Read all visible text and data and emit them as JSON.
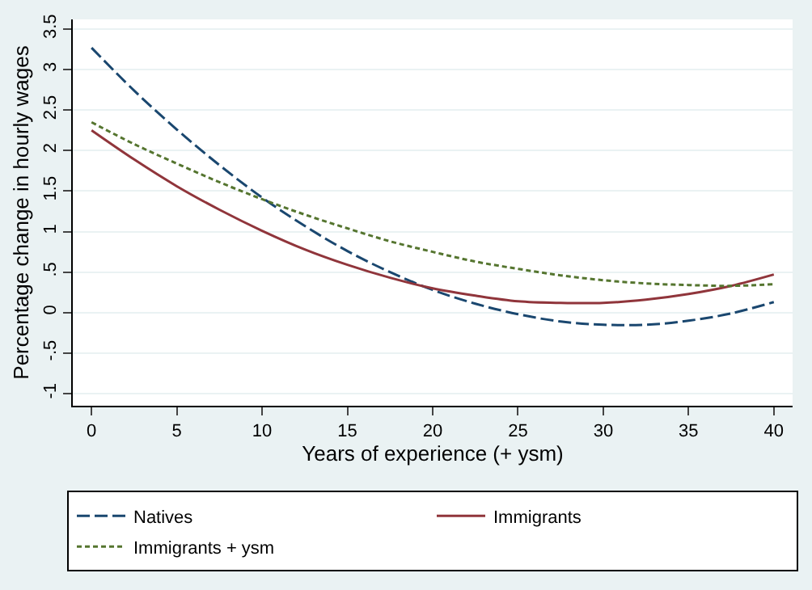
{
  "chart_data": {
    "type": "line",
    "xlabel": "Years of experience (+ ysm)",
    "ylabel": "Percentage change in hourly wages",
    "x": [
      0,
      2.5,
      5,
      7.5,
      10,
      12.5,
      15,
      17.5,
      20,
      22.5,
      25,
      27.5,
      30,
      32.5,
      35,
      37.5,
      40
    ],
    "series": [
      {
        "name": "Natives",
        "color": "#1a476f",
        "line_style": "dashed",
        "values": [
          3.27,
          2.74,
          2.26,
          1.82,
          1.42,
          1.07,
          0.76,
          0.5,
          0.28,
          0.11,
          -0.02,
          -0.11,
          -0.15,
          -0.15,
          -0.1,
          -0.01,
          0.13
        ]
      },
      {
        "name": "Immigrants",
        "color": "#90353b",
        "line_style": "solid",
        "values": [
          2.25,
          1.89,
          1.56,
          1.27,
          1.01,
          0.78,
          0.59,
          0.43,
          0.3,
          0.21,
          0.14,
          0.12,
          0.12,
          0.16,
          0.23,
          0.33,
          0.47
        ]
      },
      {
        "name": "Immigrants + ysm",
        "color": "#55752f",
        "line_style": "dotted",
        "values": [
          2.35,
          2.08,
          1.84,
          1.61,
          1.4,
          1.21,
          1.04,
          0.88,
          0.75,
          0.63,
          0.54,
          0.46,
          0.4,
          0.36,
          0.34,
          0.33,
          0.35
        ]
      }
    ],
    "xlim": [
      -1.1,
      41.1
    ],
    "xticks": [
      0,
      5,
      10,
      15,
      20,
      25,
      30,
      35,
      40
    ],
    "ylim": [
      -1.15,
      3.62
    ],
    "yticks": [
      -1,
      {
        "value": -0.5,
        "label": "-.5"
      },
      0,
      {
        "value": 0.5,
        "label": ".5"
      },
      1,
      1.5,
      2,
      2.5,
      3,
      3.5
    ],
    "grid": "y",
    "legend": "bottom",
    "marker": "none"
  }
}
